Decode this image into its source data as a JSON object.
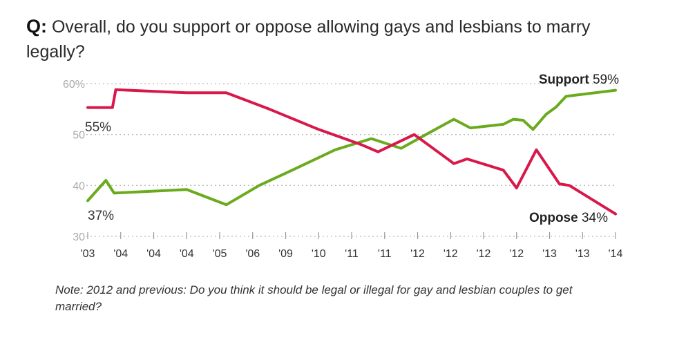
{
  "question": {
    "prefix": "Q:",
    "text": "Overall, do you support or oppose allowing gays and lesbians to marry legally?"
  },
  "note": "Note: 2012 and previous: Do you think it should be legal or illegal for gay and lesbian couples to get married?",
  "colors": {
    "support": "#6aab1e",
    "oppose": "#d8184a",
    "grid": "#bbbbbb",
    "tick": "#aaaaaa"
  },
  "chart_data": {
    "type": "line",
    "title": "Overall, do you support or oppose allowing gays and lesbians to marry legally?",
    "ylim": [
      30,
      60
    ],
    "yticks": [
      {
        "value": 60,
        "label": "60%"
      },
      {
        "value": 50,
        "label": "50"
      },
      {
        "value": 40,
        "label": "40"
      },
      {
        "value": 30,
        "label": "30"
      }
    ],
    "grid": true,
    "categories": [
      "'03",
      "'04",
      "'04",
      "'04",
      "'05",
      "'06",
      "'09",
      "'10",
      "'11",
      "'11",
      "'12",
      "'12",
      "'12",
      "'12",
      "'13",
      "'13",
      "'14"
    ],
    "series": [
      {
        "name": "Support",
        "color": "#6aab1e",
        "end_label": "Support",
        "end_value": "59%",
        "start_label": "37%",
        "points": [
          [
            0.0,
            37
          ],
          [
            0.55,
            41
          ],
          [
            0.8,
            38.5
          ],
          [
            3.0,
            39.2
          ],
          [
            4.2,
            36.2
          ],
          [
            5.2,
            40.0
          ],
          [
            6.2,
            43.0
          ],
          [
            7.5,
            47.0
          ],
          [
            8.6,
            49.2
          ],
          [
            9.5,
            47.3
          ],
          [
            10.2,
            49.8
          ],
          [
            11.1,
            53.0
          ],
          [
            11.6,
            51.3
          ],
          [
            12.6,
            52.0
          ],
          [
            12.9,
            53.0
          ],
          [
            13.2,
            52.8
          ],
          [
            13.5,
            51.0
          ],
          [
            13.9,
            54.0
          ],
          [
            14.2,
            55.4
          ],
          [
            14.5,
            57.5
          ],
          [
            16.0,
            58.7
          ]
        ]
      },
      {
        "name": "Oppose",
        "color": "#d8184a",
        "end_label": "Oppose",
        "end_value": "34%",
        "start_label": "55%",
        "points": [
          [
            0.0,
            55.3
          ],
          [
            0.75,
            55.3
          ],
          [
            0.85,
            58.8
          ],
          [
            3.0,
            58.2
          ],
          [
            4.2,
            58.2
          ],
          [
            5.5,
            55.0
          ],
          [
            7.0,
            51.0
          ],
          [
            8.3,
            48.0
          ],
          [
            8.8,
            46.6
          ],
          [
            9.9,
            50.0
          ],
          [
            11.1,
            44.3
          ],
          [
            11.5,
            45.2
          ],
          [
            12.6,
            43.0
          ],
          [
            13.0,
            39.5
          ],
          [
            13.6,
            47.0
          ],
          [
            14.3,
            40.3
          ],
          [
            14.6,
            40.0
          ],
          [
            16.0,
            34.4
          ]
        ]
      }
    ]
  }
}
